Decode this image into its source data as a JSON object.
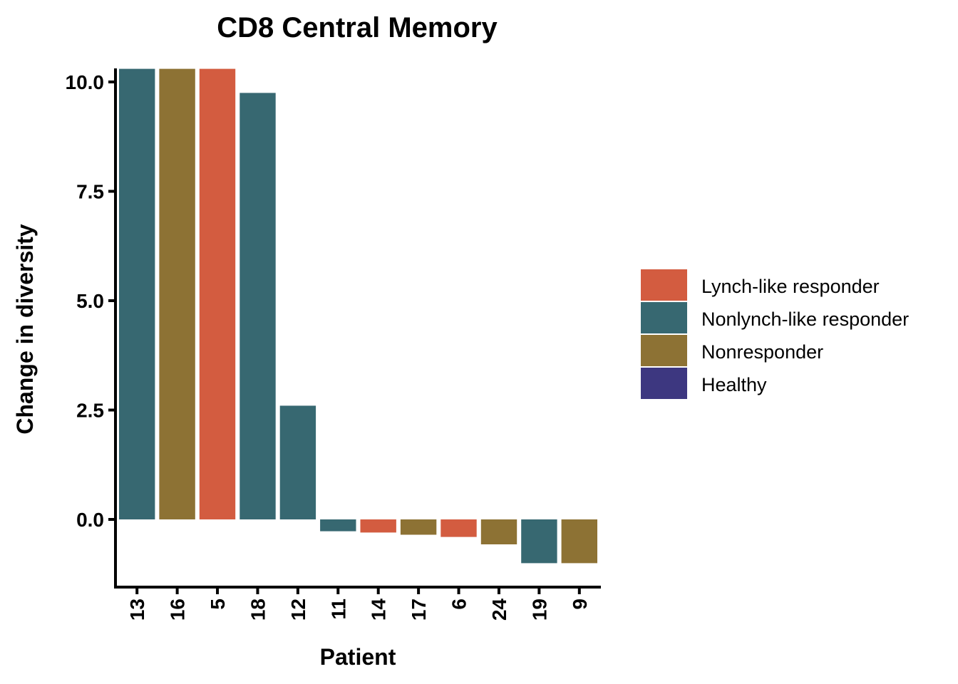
{
  "chart_data": {
    "type": "bar",
    "title": "CD8 Central Memory",
    "xlabel": "Patient",
    "ylabel": "Change in diversity",
    "ylim": [
      -1.5,
      10.3
    ],
    "yticks": [
      "0.0",
      "2.5",
      "5.0",
      "7.5",
      "10.0"
    ],
    "ytick_values": [
      0,
      2.5,
      5,
      7.5,
      10
    ],
    "categories": [
      "13",
      "16",
      "5",
      "18",
      "12",
      "11",
      "14",
      "17",
      "6",
      "24",
      "19",
      "9"
    ],
    "values": [
      10.3,
      10.3,
      10.3,
      9.75,
      2.6,
      -0.27,
      -0.3,
      -0.35,
      -0.4,
      -0.57,
      -1.0,
      -1.0
    ],
    "groups": [
      "Nonlynch-like responder",
      "Nonresponder",
      "Lynch-like responder",
      "Nonlynch-like responder",
      "Nonlynch-like responder",
      "Nonlynch-like responder",
      "Lynch-like responder",
      "Nonresponder",
      "Lynch-like responder",
      "Nonresponder",
      "Nonlynch-like responder",
      "Nonresponder"
    ],
    "legend": [
      {
        "label": "Lynch-like responder",
        "color": "#D35C40"
      },
      {
        "label": "Nonlynch-like responder",
        "color": "#376871"
      },
      {
        "label": "Nonresponder",
        "color": "#8D7234"
      },
      {
        "label": "Healthy",
        "color": "#3D3780"
      }
    ],
    "legend_position": "right",
    "grid": false
  }
}
